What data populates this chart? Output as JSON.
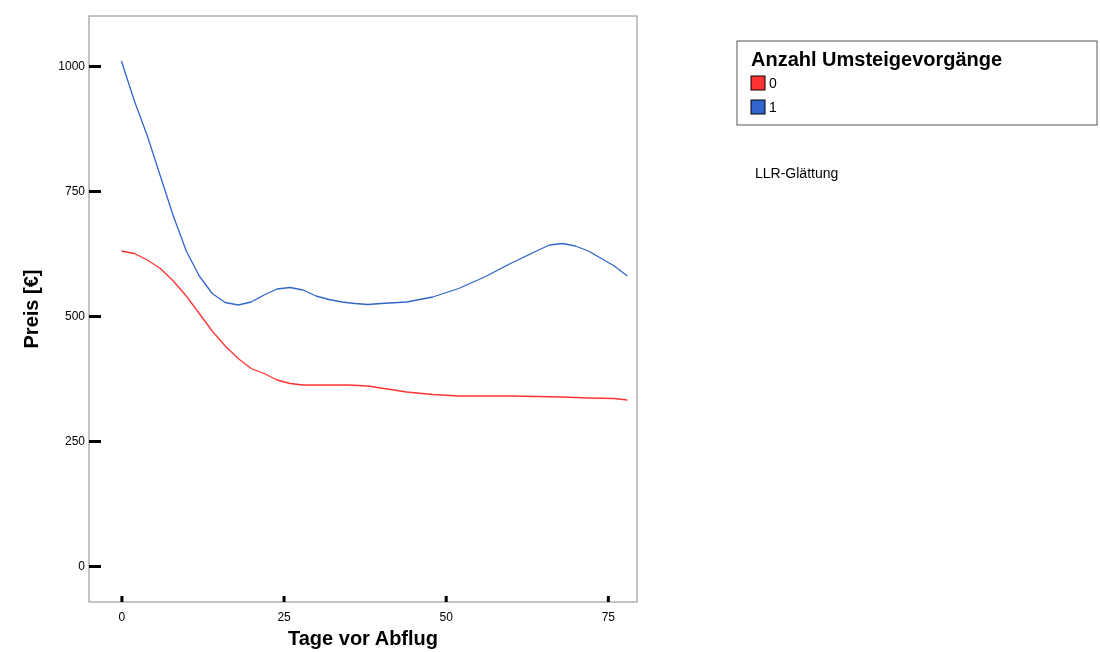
{
  "chart_data": {
    "type": "line",
    "xlabel": "Tage vor Abflug",
    "ylabel": "Preis [€]",
    "legend_title": "Anzahl Umsteigevorgänge",
    "legend": "right",
    "grid": false,
    "annotations": [
      "LLR-Glättung"
    ],
    "xlim": [
      -5,
      79.5
    ],
    "xticks": [
      0,
      25,
      50,
      75
    ],
    "ylim": [
      -72,
      1100
    ],
    "yticks": [
      0,
      250,
      500,
      750,
      1000
    ],
    "series": [
      {
        "name": "0",
        "color": "#ff3333",
        "x": [
          0,
          2,
          4,
          6,
          8,
          10,
          12,
          14,
          16,
          18,
          20,
          22,
          24,
          26,
          28,
          30,
          35,
          38,
          40,
          44,
          48,
          52,
          60,
          68,
          72,
          76,
          78
        ],
        "values": [
          630,
          625,
          612,
          595,
          570,
          540,
          505,
          470,
          440,
          415,
          395,
          385,
          372,
          365,
          362,
          362,
          362,
          360,
          356,
          348,
          343,
          340,
          340,
          338,
          336,
          335,
          332
        ]
      },
      {
        "name": "1",
        "color": "#3366cc",
        "x": [
          0,
          2,
          4,
          6,
          8,
          10,
          12,
          14,
          16,
          18,
          20,
          22,
          24,
          26,
          28,
          30,
          32,
          34,
          36,
          38,
          40,
          44,
          48,
          52,
          56,
          60,
          64,
          66,
          68,
          70,
          72,
          74,
          76,
          78
        ],
        "values": [
          1010,
          930,
          860,
          780,
          700,
          630,
          580,
          545,
          527,
          522,
          528,
          542,
          554,
          557,
          552,
          540,
          533,
          528,
          525,
          523,
          525,
          528,
          538,
          555,
          578,
          605,
          630,
          642,
          645,
          640,
          630,
          615,
          600,
          580
        ]
      }
    ]
  }
}
